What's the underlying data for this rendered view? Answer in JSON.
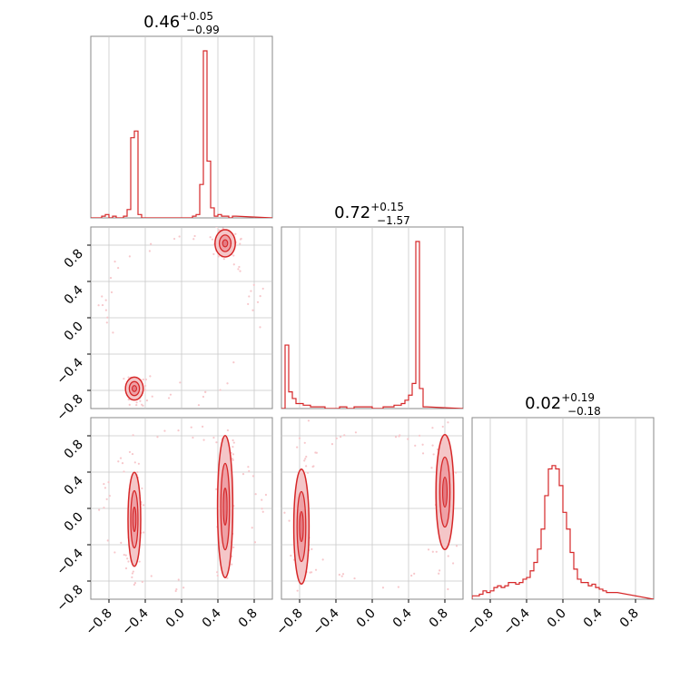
{
  "chart_data": {
    "type": "corner",
    "color": "#d62728",
    "fill_color": "#f4c6c8",
    "scatter_color": "#f7c7cb",
    "grid": true,
    "axis_range": [
      -1,
      1
    ],
    "ticks": [
      -0.8,
      -0.4,
      0.0,
      0.4,
      0.8
    ],
    "tick_labels": [
      "−0.8",
      "−0.4",
      "0.0",
      "0.4",
      "0.8"
    ],
    "titles": [
      {
        "median": "0.46",
        "plus": "+0.05",
        "minus": "−0.99"
      },
      {
        "median": "0.72",
        "plus": "+0.15",
        "minus": "−1.57"
      },
      {
        "median": "0.02",
        "plus": "+0.19",
        "minus": "−0.18"
      }
    ],
    "histograms": [
      {
        "edges_start": -1.0,
        "bin_width": 0.04,
        "counts": [
          0,
          0,
          0,
          0.01,
          0.02,
          0,
          0.01,
          0,
          0,
          0.01,
          0.05,
          0.48,
          0.52,
          0.02,
          0,
          0,
          0,
          0,
          0,
          0,
          0,
          0,
          0,
          0,
          0,
          0,
          0,
          0,
          0.01,
          0.02,
          0.2,
          1.0,
          0.34,
          0.06,
          0.01,
          0.02,
          0.01,
          0.01,
          0,
          0.01
        ]
      },
      {
        "edges_start": -1.0,
        "bin_width": 0.04,
        "counts": [
          0,
          0.38,
          0.1,
          0.06,
          0.03,
          0.03,
          0.02,
          0.02,
          0.01,
          0.01,
          0.01,
          0.01,
          0,
          0,
          0,
          0,
          0.01,
          0.01,
          0,
          0,
          0.01,
          0.01,
          0.01,
          0.01,
          0.01,
          0,
          0,
          0,
          0.01,
          0.01,
          0.01,
          0.02,
          0.02,
          0.03,
          0.05,
          0.08,
          0.15,
          1.0,
          0.12,
          0.01
        ]
      },
      {
        "edges_start": -1.0,
        "bin_width": 0.04,
        "counts": [
          0.02,
          0.02,
          0.03,
          0.05,
          0.04,
          0.05,
          0.07,
          0.08,
          0.07,
          0.08,
          0.1,
          0.1,
          0.09,
          0.1,
          0.12,
          0.13,
          0.17,
          0.22,
          0.3,
          0.42,
          0.62,
          0.78,
          0.8,
          0.78,
          0.68,
          0.52,
          0.42,
          0.28,
          0.18,
          0.12,
          0.1,
          0.1,
          0.08,
          0.09,
          0.07,
          0.06,
          0.05,
          0.04,
          0.04,
          0.04
        ]
      }
    ],
    "contours_2d": [
      {
        "row": 1,
        "col": 0,
        "regions": [
          {
            "x": 0.48,
            "y": 0.82,
            "w": 0.08,
            "h": 0.13
          },
          {
            "x": -0.52,
            "y": -0.78,
            "w": 0.07,
            "h": 0.11
          }
        ]
      },
      {
        "row": 2,
        "col": 0,
        "regions": [
          {
            "x": -0.52,
            "y": -0.12,
            "w": 0.05,
            "h": 0.45
          },
          {
            "x": 0.48,
            "y": 0.02,
            "w": 0.06,
            "h": 0.68
          }
        ]
      },
      {
        "row": 2,
        "col": 1,
        "regions": [
          {
            "x": -0.78,
            "y": -0.2,
            "w": 0.06,
            "h": 0.55
          },
          {
            "x": 0.8,
            "y": 0.18,
            "w": 0.07,
            "h": 0.55
          }
        ]
      }
    ]
  }
}
